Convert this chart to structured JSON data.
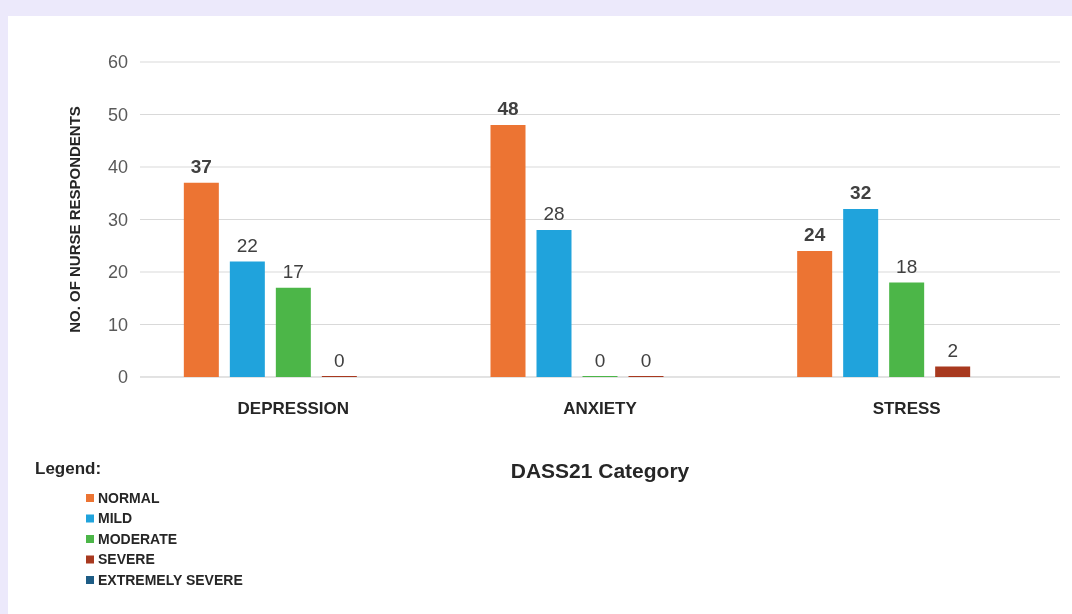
{
  "chart_data": {
    "type": "bar",
    "xlabel": "DASS21 Category",
    "ylabel": "NO. OF NURSE RESPONDENTS",
    "legend_title": "Legend:",
    "categories": [
      "DEPRESSION",
      "ANXIETY",
      "STRESS"
    ],
    "series": [
      {
        "name": "NORMAL",
        "color": "#ec7433",
        "values": [
          37,
          48,
          24
        ]
      },
      {
        "name": "MILD",
        "color": "#20a3dc",
        "values": [
          22,
          28,
          32
        ]
      },
      {
        "name": "MODERATE",
        "color": "#4cb648",
        "values": [
          17,
          0,
          18
        ]
      },
      {
        "name": "SEVERE",
        "color": "#a8391f",
        "values": [
          0,
          0,
          2
        ]
      },
      {
        "name": "EXTREMELY SEVERE",
        "color": "#1d5c85",
        "values": [
          null,
          null,
          null
        ]
      }
    ],
    "ylim": [
      0,
      60
    ],
    "yticks": [
      0,
      10,
      20,
      30,
      40,
      50,
      60
    ],
    "grid": "y",
    "legend": "bottom left",
    "data_labels": true
  }
}
